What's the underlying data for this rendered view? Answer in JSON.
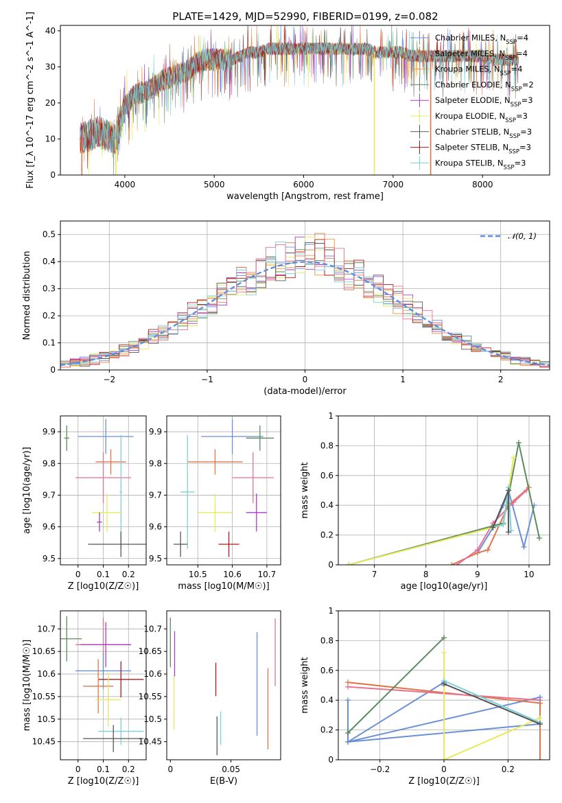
{
  "figure": {
    "title": "PLATE=1429, MJD=52990, FIBERID=0199, z=0.082"
  },
  "chart_data": [
    {
      "type": "line",
      "id": "spectrum",
      "xlabel": "wavelength [Angstrom, rest frame]",
      "ylabel": "Flux [f_λ 10^-17 erg cm^-2 s^-1 A^-1]",
      "xlim": [
        3280,
        8750
      ],
      "ylim": [
        0,
        41.5
      ],
      "xticks": [
        4000,
        5000,
        6000,
        7000,
        8000
      ],
      "yticks": [
        0,
        10,
        20,
        30,
        40
      ],
      "grid": false,
      "legend_position": "right",
      "series": [
        {
          "name": "Chabrier MILES, N_SSP=4",
          "color": "#6a8fd8"
        },
        {
          "name": "Salpeter MILES, N_SSP=4",
          "color": "#e0754a"
        },
        {
          "name": "Kroupa MILES, N_SSP=4",
          "color": "#e8963a"
        },
        {
          "name": "Chabrier ELODIE, N_SSP=2",
          "color": "#5b8a5b"
        },
        {
          "name": "Salpeter ELODIE, N_SSP=3",
          "color": "#a83dc8"
        },
        {
          "name": "Kroupa ELODIE, N_SSP=3",
          "color": "#e8e85a"
        },
        {
          "name": "Chabrier STELIB, N_SSP=3",
          "color": "#555555"
        },
        {
          "name": "Salpeter STELIB, N_SSP=3",
          "color": "#b01818"
        },
        {
          "name": "Kroupa STELIB, N_SSP=3",
          "color": "#7ad0d8"
        }
      ],
      "continuum": {
        "x": [
          3500,
          3600,
          3700,
          3800,
          3900,
          4000,
          4100,
          4200,
          4300,
          4400,
          4500,
          4600,
          4700,
          4800,
          4900,
          5000,
          5100,
          5200,
          5300,
          5400,
          5500,
          5600,
          5700,
          5800,
          5900,
          6000,
          6100,
          6200,
          6300,
          6400,
          6500,
          6600,
          6700,
          6800,
          6900,
          7000,
          7100,
          7200,
          7300,
          7400,
          7500,
          7600,
          7700,
          7800,
          7900,
          8000,
          8100,
          8200,
          8300,
          8400
        ],
        "y": [
          10,
          11,
          12,
          11,
          10,
          19,
          22,
          23,
          24,
          26,
          27,
          28,
          29,
          31,
          32,
          32,
          32,
          32,
          33,
          34,
          34,
          35,
          35,
          35,
          35,
          35,
          35,
          35,
          35,
          35,
          35,
          35,
          35,
          34,
          34,
          34,
          34,
          33,
          33,
          33,
          33,
          33,
          33,
          33,
          33,
          33,
          32,
          32,
          32,
          32
        ]
      },
      "dropouts": [
        {
          "x": 3520,
          "color": "#e0754a"
        },
        {
          "x": 3900,
          "color": "#e8e85a"
        },
        {
          "x": 6790,
          "color": "#e8e85a"
        },
        {
          "x": 7420,
          "color": "#e0754a"
        }
      ]
    },
    {
      "type": "line",
      "id": "residuals",
      "xlabel": "(data-model)/error",
      "ylabel": "Normed distribution",
      "xlim": [
        -2.5,
        2.5
      ],
      "ylim": [
        0,
        0.55
      ],
      "xticks": [
        -2,
        -1,
        0,
        1,
        2
      ],
      "yticks": [
        0.0,
        0.1,
        0.2,
        0.3,
        0.4,
        0.5
      ],
      "grid": true,
      "legend": [
        {
          "name": "N(0,1)",
          "style": "dashed",
          "color": "#5b8ee0"
        }
      ],
      "histogram_bin_width": 0.1
    },
    {
      "type": "scatter",
      "id": "age-vs-Z",
      "xlabel": "Z [log10(Z/Z☉)]",
      "ylabel": "age [log10(age/yr)]",
      "xlim": [
        -0.07,
        0.27
      ],
      "ylim": [
        9.48,
        9.95
      ],
      "xticks": [
        0.0,
        0.1,
        0.2
      ],
      "yticks": [
        9.5,
        9.6,
        9.7,
        9.8,
        9.9
      ],
      "grid": true,
      "points": [
        {
          "x": 0.11,
          "y": 9.885,
          "xerr": 0.11,
          "yerr": 0.055,
          "color": "#6a8fd8"
        },
        {
          "x": -0.045,
          "y": 9.88,
          "xerr": 0.01,
          "yerr": 0.04,
          "color": "#5b8a5b"
        },
        {
          "x": 0.13,
          "y": 9.805,
          "xerr": 0.06,
          "yerr": 0.04,
          "color": "#e0754a"
        },
        {
          "x": 0.1,
          "y": 9.755,
          "xerr": 0.11,
          "yerr": 0.08,
          "color": "#e87090"
        },
        {
          "x": 0.17,
          "y": 9.71,
          "xerr": 0.005,
          "yerr": 0.18,
          "color": "#7ad0d8"
        },
        {
          "x": 0.115,
          "y": 9.645,
          "xerr": 0.06,
          "yerr": 0.06,
          "color": "#e8e85a"
        },
        {
          "x": 0.085,
          "y": 9.615,
          "xerr": 0.01,
          "yerr": 0.03,
          "color": "#a83dc8"
        },
        {
          "x": 0.17,
          "y": 9.545,
          "xerr": 0.13,
          "yerr": 0.04,
          "color": "#555555"
        }
      ]
    },
    {
      "type": "scatter",
      "id": "age-vs-mass",
      "xlabel": "mass [log10(M/M☉)]",
      "ylabel": "",
      "xlim": [
        10.41,
        10.74
      ],
      "ylim": [
        9.48,
        9.95
      ],
      "xticks": [
        10.5,
        10.6,
        10.7
      ],
      "yticks": [
        9.5,
        9.6,
        9.7,
        9.8,
        9.9
      ],
      "grid": true,
      "points": [
        {
          "x": 10.6,
          "y": 9.885,
          "xerr": 0.09,
          "yerr": 0.055,
          "color": "#6a8fd8"
        },
        {
          "x": 10.68,
          "y": 9.88,
          "xerr": 0.04,
          "yerr": 0.04,
          "color": "#5b8a5b"
        },
        {
          "x": 10.55,
          "y": 9.805,
          "xerr": 0.08,
          "yerr": 0.04,
          "color": "#e0754a"
        },
        {
          "x": 10.66,
          "y": 9.755,
          "xerr": 0.06,
          "yerr": 0.08,
          "color": "#e87090"
        },
        {
          "x": 10.47,
          "y": 9.71,
          "xerr": 0.02,
          "yerr": 0.18,
          "color": "#7ad0d8"
        },
        {
          "x": 10.55,
          "y": 9.645,
          "xerr": 0.05,
          "yerr": 0.06,
          "color": "#e8e85a"
        },
        {
          "x": 10.67,
          "y": 9.645,
          "xerr": 0.03,
          "yerr": 0.06,
          "color": "#a83dc8"
        },
        {
          "x": 10.59,
          "y": 9.545,
          "xerr": 0.03,
          "yerr": 0.04,
          "color": "#b01818"
        },
        {
          "x": 10.45,
          "y": 9.545,
          "xerr": 0.02,
          "yerr": 0.04,
          "color": "#555555"
        }
      ]
    },
    {
      "type": "line",
      "id": "weight-vs-age",
      "xlabel": "age [log10(age/yr)]",
      "ylabel": "mass weight",
      "xlim": [
        6.3,
        10.4
      ],
      "ylim": [
        0,
        1.0
      ],
      "xticks": [
        7,
        8,
        9,
        10
      ],
      "yticks": [
        0.0,
        0.2,
        0.4,
        0.6,
        0.8,
        1.0
      ],
      "grid": true,
      "series": [
        {
          "color": "#6a8fd8",
          "x": [
            9.0,
            9.3,
            9.5,
            9.6,
            9.9,
            10.1
          ],
          "y": [
            0.08,
            0.25,
            0.4,
            0.5,
            0.12,
            0.4
          ]
        },
        {
          "color": "#e0754a",
          "x": [
            8.5,
            9.0,
            9.2,
            9.6,
            10.0
          ],
          "y": [
            0.0,
            0.08,
            0.1,
            0.4,
            0.52
          ]
        },
        {
          "color": "#e87090",
          "x": [
            8.6,
            9.0,
            9.3,
            9.7,
            9.95
          ],
          "y": [
            0.0,
            0.1,
            0.28,
            0.42,
            0.5
          ]
        },
        {
          "color": "#5b8a5b",
          "x": [
            6.5,
            9.5,
            9.8,
            10.2
          ],
          "y": [
            0.0,
            0.28,
            0.82,
            0.18
          ]
        },
        {
          "color": "#e8e85a",
          "x": [
            6.5,
            9.5,
            9.7
          ],
          "y": [
            0.0,
            0.27,
            0.72
          ]
        },
        {
          "color": "#7ad0d8",
          "x": [
            9.3,
            9.5,
            9.6,
            9.65
          ],
          "y": [
            0.25,
            0.27,
            0.52,
            0.23
          ]
        },
        {
          "color": "#555555",
          "x": [
            9.3,
            9.6,
            9.6
          ],
          "y": [
            0.25,
            0.5,
            0.22
          ]
        }
      ]
    },
    {
      "type": "scatter",
      "id": "mass-vs-Z",
      "xlabel": "Z [log10(Z/Z☉)]",
      "ylabel": "mass [log10(M/M☉)]",
      "xlim": [
        -0.07,
        0.27
      ],
      "ylim": [
        10.41,
        10.74
      ],
      "xticks": [
        0.0,
        0.1,
        0.2
      ],
      "yticks": [
        10.45,
        10.5,
        10.55,
        10.6,
        10.65,
        10.7
      ],
      "grid": true,
      "points": [
        {
          "x": -0.045,
          "y": 10.678,
          "xerr": 0.06,
          "yerr": 0.05,
          "color": "#5b8a5b"
        },
        {
          "x": 0.1,
          "y": 10.665,
          "xerr": 0.11,
          "yerr": 0.06,
          "color": "#e87090"
        },
        {
          "x": 0.11,
          "y": 10.665,
          "xerr": 0.1,
          "yerr": 0.05,
          "color": "#a83dc8"
        },
        {
          "x": 0.1,
          "y": 10.607,
          "xerr": 0.11,
          "yerr": 0.04,
          "color": "#6a8fd8"
        },
        {
          "x": 0.17,
          "y": 10.588,
          "xerr": 0.09,
          "yerr": 0.04,
          "color": "#b01818"
        },
        {
          "x": 0.08,
          "y": 10.573,
          "xerr": 0.06,
          "yerr": 0.06,
          "color": "#e0754a"
        },
        {
          "x": 0.12,
          "y": 10.543,
          "xerr": 0.05,
          "yerr": 0.06,
          "color": "#e8e85a"
        },
        {
          "x": 0.17,
          "y": 10.473,
          "xerr": 0.09,
          "yerr": 0.03,
          "color": "#7ad0d8"
        },
        {
          "x": 0.14,
          "y": 10.457,
          "xerr": 0.12,
          "yerr": 0.03,
          "color": "#555555"
        }
      ]
    },
    {
      "type": "scatter",
      "id": "mass-vs-EBV",
      "xlabel": "E(B-V)",
      "ylabel": "",
      "xlim": [
        -0.003,
        0.091
      ],
      "ylim": [
        10.41,
        10.74
      ],
      "xticks": [
        0.0,
        0.05
      ],
      "yticks": [
        10.45,
        10.5,
        10.55,
        10.6,
        10.65,
        10.7
      ],
      "grid": false,
      "points": [
        {
          "x": 0.0,
          "y": 10.67,
          "yerr": 0.055,
          "color": "#5b8a5b"
        },
        {
          "x": 0.003,
          "y": 10.537,
          "yerr": 0.06,
          "color": "#e8e85a"
        },
        {
          "x": 0.0035,
          "y": 10.645,
          "yerr": 0.05,
          "color": "#a83dc8"
        },
        {
          "x": 0.0375,
          "y": 10.588,
          "yerr": 0.037,
          "color": "#b01818"
        },
        {
          "x": 0.0385,
          "y": 10.463,
          "yerr": 0.043,
          "color": "#555555"
        },
        {
          "x": 0.0415,
          "y": 10.48,
          "yerr": 0.037,
          "color": "#7ad0d8"
        },
        {
          "x": 0.0715,
          "y": 10.578,
          "yerr": 0.115,
          "color": "#6a8fd8"
        },
        {
          "x": 0.0805,
          "y": 10.523,
          "yerr": 0.09,
          "color": "#e0754a"
        },
        {
          "x": 0.0865,
          "y": 10.648,
          "yerr": 0.075,
          "color": "#e87090"
        }
      ]
    },
    {
      "type": "line",
      "id": "weight-vs-Z",
      "xlabel": "Z [log10(Z/Z☉)]",
      "ylabel": "mass weight",
      "xlim": [
        -0.33,
        0.33
      ],
      "ylim": [
        0,
        1.0
      ],
      "xticks": [
        -0.2,
        0.0,
        0.2
      ],
      "yticks": [
        0.0,
        0.2,
        0.4,
        0.6,
        0.8,
        1.0
      ],
      "grid": true,
      "series": [
        {
          "color": "#6a8fd8",
          "x": [
            -0.3,
            -0.3,
            0.3,
            0.3,
            -0.3,
            0.0,
            0.0
          ],
          "y": [
            0.4,
            0.12,
            0.42,
            0.24,
            0.12,
            0.52,
            0.5
          ]
        },
        {
          "color": "#e0754a",
          "x": [
            -0.3,
            0.3,
            0.3
          ],
          "y": [
            0.52,
            0.38,
            0.0
          ]
        },
        {
          "color": "#e87090",
          "x": [
            -0.3,
            0.3
          ],
          "y": [
            0.49,
            0.4
          ]
        },
        {
          "color": "#5b8a5b",
          "x": [
            -0.3,
            0.0
          ],
          "y": [
            0.18,
            0.82
          ]
        },
        {
          "color": "#e8e85a",
          "x": [
            0.0,
            0.0,
            0.3,
            0.3
          ],
          "y": [
            0.72,
            0.0,
            0.28,
            0.24
          ]
        },
        {
          "color": "#7ad0d8",
          "x": [
            0.0,
            0.3
          ],
          "y": [
            0.53,
            0.25
          ]
        },
        {
          "color": "#555555",
          "x": [
            0.0,
            0.3
          ],
          "y": [
            0.51,
            0.24
          ]
        }
      ]
    }
  ]
}
